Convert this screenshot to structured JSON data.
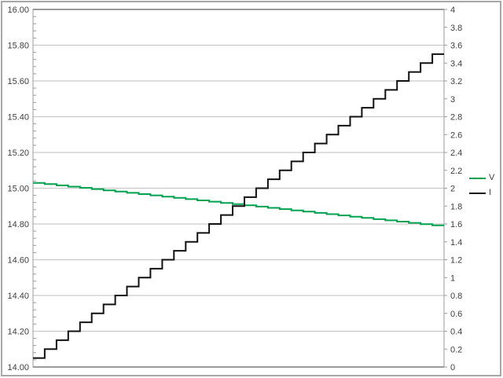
{
  "window": {
    "background": "#FFFFFF",
    "outer_border_color": "#A8A8A8"
  },
  "colors": {
    "gridline": "#C9C9C9",
    "axis": "#9B9B9B",
    "label": "#3F3F3F",
    "series_v": "#00A14F",
    "series_i": "#111111"
  },
  "chart_data": {
    "type": "line",
    "title": "",
    "grid": "horizontal-major",
    "x_axis": {
      "labels_visible": false
    },
    "left_axis": {
      "min": 14.0,
      "max": 16.0,
      "major_unit": 0.2,
      "minor_unit": 0.04,
      "tick_labels": [
        "16.00",
        "15.80",
        "15.60",
        "15.40",
        "15.20",
        "15.00",
        "14.80",
        "14.60",
        "14.40",
        "14.20",
        "14.00"
      ]
    },
    "right_axis": {
      "min": 0,
      "max": 4,
      "major_unit": 0.2,
      "tick_labels": [
        "4",
        "3.8",
        "3.6",
        "3.4",
        "3.2",
        "3",
        "2.8",
        "2.6",
        "2.4",
        "2.2",
        "2",
        "1.8",
        "1.6",
        "1.4",
        "1.2",
        "1",
        "0.8",
        "0.6",
        "0.4",
        "0.2",
        "0"
      ]
    },
    "legend": {
      "position": "right",
      "entries": [
        {
          "label": "V",
          "color": "#00A14F"
        },
        {
          "label": "I",
          "color": "#111111"
        }
      ]
    },
    "series": [
      {
        "name": "V",
        "axis": "left",
        "color": "#00A14F",
        "type": "step",
        "values": [
          15.03,
          15.023,
          15.016,
          15.009,
          15.002,
          14.995,
          14.988,
          14.981,
          14.974,
          14.967,
          14.96,
          14.953,
          14.946,
          14.939,
          14.932,
          14.925,
          14.918,
          14.911,
          14.904,
          14.897,
          14.89,
          14.883,
          14.876,
          14.869,
          14.862,
          14.855,
          14.848,
          14.841,
          14.834,
          14.827,
          14.82,
          14.813,
          14.806,
          14.799,
          14.792
        ]
      },
      {
        "name": "I",
        "axis": "right",
        "color": "#111111",
        "type": "step",
        "values": [
          0.1,
          0.2,
          0.3,
          0.4,
          0.5,
          0.6,
          0.7,
          0.8,
          0.9,
          1.0,
          1.1,
          1.2,
          1.3,
          1.4,
          1.5,
          1.6,
          1.7,
          1.8,
          1.9,
          2.0,
          2.1,
          2.2,
          2.3,
          2.4,
          2.5,
          2.6,
          2.7,
          2.8,
          2.9,
          3.0,
          3.1,
          3.2,
          3.3,
          3.4,
          3.5
        ]
      }
    ]
  }
}
